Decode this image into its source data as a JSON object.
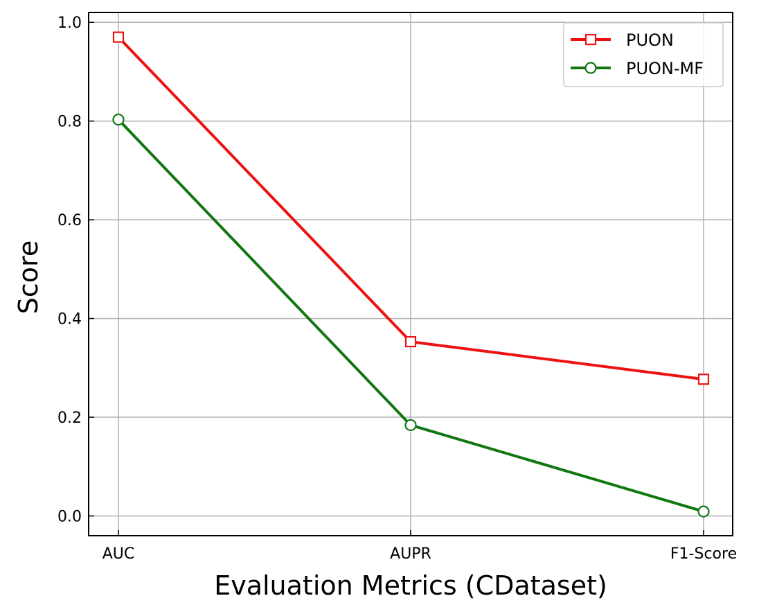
{
  "chart_data": {
    "type": "line",
    "title": "",
    "xlabel": "Evaluation Metrics (CDataset)",
    "ylabel": "Score",
    "categories": [
      "AUC",
      "AUPR",
      "F1-Score"
    ],
    "ylim": [
      -0.04,
      1.02
    ],
    "yticks": [
      0.0,
      0.2,
      0.4,
      0.6,
      0.8,
      1.0
    ],
    "ytick_labels": [
      "0.0",
      "0.2",
      "0.4",
      "0.6",
      "0.8",
      "1.0"
    ],
    "grid": true,
    "legend_position": "top-right",
    "series": [
      {
        "name": "PUON",
        "values": [
          0.97,
          0.353,
          0.277
        ],
        "color": "#ee1111",
        "marker": "square"
      },
      {
        "name": "PUON-MF",
        "values": [
          0.803,
          0.184,
          0.009
        ],
        "color": "#117711",
        "marker": "circle"
      }
    ]
  }
}
